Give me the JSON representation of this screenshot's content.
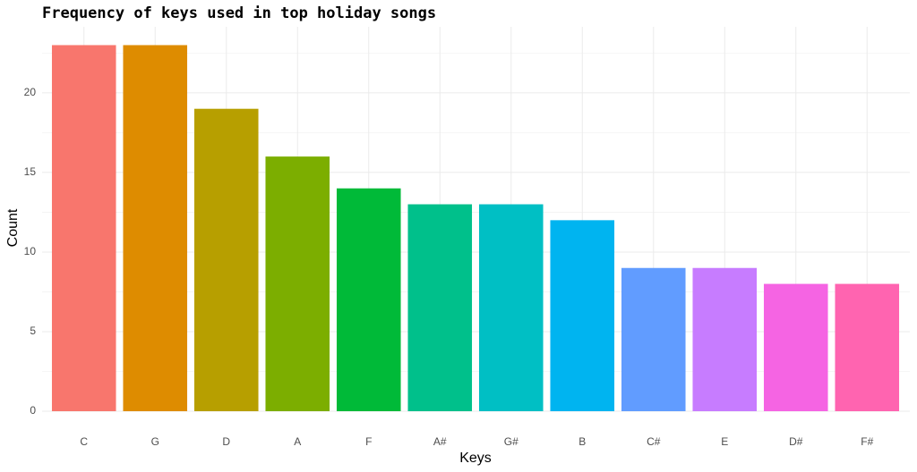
{
  "chart_data": {
    "type": "bar",
    "title": "Frequency of keys used in top holiday songs",
    "x_label": "Keys",
    "y_label": "Count",
    "categories": [
      "C",
      "G",
      "D",
      "A",
      "F",
      "A#",
      "G#",
      "B",
      "C#",
      "E",
      "D#",
      "F#"
    ],
    "values": [
      23,
      23,
      19,
      16,
      14,
      13,
      13,
      12,
      9,
      9,
      8,
      8
    ],
    "colors": [
      "#F8766D",
      "#DE8C00",
      "#B79F00",
      "#7CAE00",
      "#00BA38",
      "#00C08B",
      "#00BFC4",
      "#00B4F0",
      "#619CFF",
      "#C77CFF",
      "#F564E3",
      "#FF64B0"
    ],
    "ylim": [
      0,
      24.15
    ],
    "yticks": [
      0,
      5,
      10,
      15,
      20
    ],
    "grid": true
  }
}
